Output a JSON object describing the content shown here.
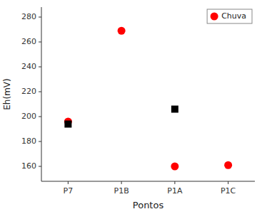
{
  "chart_data": {
    "type": "scatter",
    "categories": [
      "P7",
      "P1B",
      "P1A",
      "P1C"
    ],
    "series": [
      {
        "name": "Chuva",
        "color": "#ff0000",
        "marker": "circle",
        "values": [
          196,
          269,
          160,
          161
        ]
      },
      {
        "color": "#000000",
        "marker": "square",
        "values": [
          194,
          null,
          206,
          null
        ]
      }
    ],
    "xlabel": "Pontos",
    "ylabel": "Eh(mV)",
    "ylim": [
      148,
      288
    ],
    "yticks": [
      160,
      180,
      200,
      220,
      240,
      260,
      280
    ],
    "grid": false,
    "legend": "upper right"
  }
}
